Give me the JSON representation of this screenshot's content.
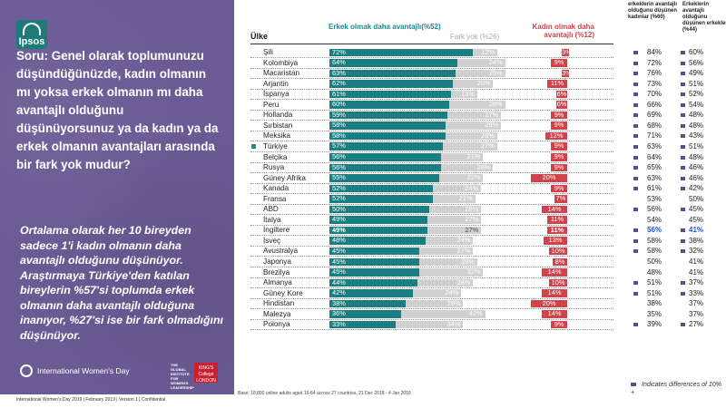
{
  "left_panel": {
    "question_prefix": "Soru:",
    "question_body": "Genel olarak toplumunuzu düşündüğünüzde, kadın olmanın mı yoksa erkek olmanın mı daha avantajlı olduğunu düşünüyorsunuz ya da kadın ya da erkek olmanın avantajları arasında bir fark yok mudur?",
    "summary": "Ortalama olarak her 10 bireyden sadece 1'i kadın olmanın daha avantajlı olduğunu düşünüyor. Araştırmaya Türkiye'den katılan bireylerin %57'si toplumda erkek olmanın daha avantajlı olduğuna inanıyor, %27'si ise bir fark olmadığını düşünüyor.",
    "logo_text": "Ipsos",
    "iwd_label": "International Women's Day",
    "partner_text": "THE GLOBAL INSTITUTE FOR WOMEN'S LEADERSHIP",
    "kings_text": "KING'S College LONDON"
  },
  "footer": {
    "left": "International Women's Day 2019 | February 2019 | Version 1 | Confidential",
    "base": "Base: 18,800 online adults aged 16-64 across 27 countries, 21 Dec 2018 - 4 Jan 2019"
  },
  "headers": {
    "country": "Ülke",
    "men": "Erkek olmak daha avantajlı(%52)",
    "no_diff": "Fark yok (%26)",
    "women": "Kadın olmak daha avantajlı (%12)",
    "col1": "erkeklerin avantajlı olduğunu düşünen kadınlar (%60)",
    "col2": "Erkeklerin avantajlı olduğunu düşünen erkekler (%44)"
  },
  "legend": {
    "text": "Indicates differences of 10% +"
  },
  "colors": {
    "panel": "#6b5b95",
    "men": "#1a7f82",
    "no_diff": "#d0d0d0",
    "women": "#d0434b",
    "marker": "#5a4d8a"
  },
  "chart_data": {
    "type": "bar",
    "stacked": true,
    "categories": [
      "Şili",
      "Kolombiya",
      "Macaristan",
      "Arjantin",
      "İspanya",
      "Peru",
      "Hollanda",
      "Sırbistan",
      "Meksika",
      "Türkiye",
      "Belçika",
      "Rusya",
      "Güney Afrika",
      "Kanada",
      "Fransa",
      "ABD",
      "İtalya",
      "İngiltere",
      "İsveç",
      "Avustralya",
      "Japonya",
      "Brezilya",
      "Almanya",
      "Güney Kore",
      "Hindistan",
      "Malezya",
      "Polonya"
    ],
    "series": [
      {
        "name": "Erkek olmak daha avantajlı",
        "values": [
          72,
          64,
          63,
          62,
          61,
          60,
          59,
          58,
          58,
          57,
          56,
          56,
          55,
          52,
          52,
          50,
          49,
          49,
          48,
          45,
          45,
          45,
          44,
          42,
          38,
          36,
          33
        ]
      },
      {
        "name": "Fark yok",
        "values": [
          12,
          24,
          25,
          20,
          13,
          28,
          27,
          28,
          26,
          27,
          21,
          26,
          22,
          24,
          21,
          26,
          27,
          27,
          24,
          27,
          29,
          32,
          28,
          24,
          29,
          42,
          34
        ]
      },
      {
        "name": "Kadın olmak daha avantajlı",
        "values": [
          3,
          9,
          3,
          11,
          6,
          6,
          9,
          9,
          12,
          9,
          9,
          9,
          20,
          9,
          7,
          14,
          11,
          11,
          13,
          10,
          8,
          14,
          10,
          14,
          20,
          14,
          9
        ]
      }
    ],
    "highlight": [
      "Türkiye",
      "İngiltere"
    ],
    "women_think_men_advantaged": [
      84,
      72,
      76,
      73,
      70,
      66,
      69,
      68,
      71,
      63,
      64,
      65,
      63,
      61,
      53,
      56,
      54,
      56,
      58,
      58,
      50,
      48,
      51,
      51,
      38,
      35,
      39
    ],
    "men_think_men_advantaged": [
      60,
      56,
      49,
      51,
      52,
      54,
      48,
      48,
      43,
      51,
      48,
      46,
      46,
      42,
      50,
      45,
      45,
      41,
      38,
      32,
      41,
      41,
      37,
      33,
      37,
      37,
      27
    ],
    "marker_col1": [
      true,
      true,
      true,
      true,
      true,
      true,
      true,
      true,
      true,
      true,
      true,
      true,
      true,
      true,
      false,
      true,
      false,
      true,
      true,
      true,
      false,
      false,
      true,
      true,
      false,
      false,
      true
    ],
    "marker_col2": [
      true,
      true,
      true,
      true,
      true,
      true,
      true,
      true,
      true,
      true,
      true,
      true,
      true,
      true,
      false,
      true,
      false,
      true,
      true,
      true,
      false,
      false,
      true,
      true,
      false,
      false,
      true
    ],
    "highlight_values": {
      "row": "İngiltere",
      "col1": "56%",
      "col2": "41%"
    }
  }
}
